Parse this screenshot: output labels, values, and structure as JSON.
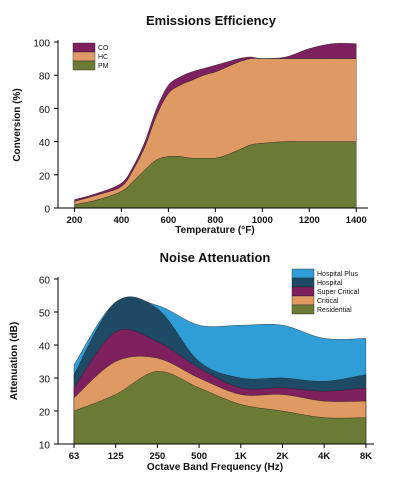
{
  "chart_data": [
    {
      "type": "area",
      "stacked": true,
      "title": "Emissions Efficiency",
      "xlabel": "Temperature (°F)",
      "ylabel": "Conversion (%)",
      "xlim": [
        130,
        1450
      ],
      "ylim": [
        0,
        100
      ],
      "x_ticks": [
        "200",
        "400",
        "600",
        "800",
        "1000",
        "1200",
        "1400"
      ],
      "y_ticks": [
        "0",
        "20",
        "40",
        "60",
        "80",
        "100"
      ],
      "legend_position": "top-left",
      "legend": [
        "CO",
        "HC",
        "PM"
      ],
      "series": [
        {
          "name": "PM",
          "color": "#6b7a34",
          "x": [
            200,
            300,
            400,
            450,
            500,
            550,
            600,
            650,
            700,
            750,
            800,
            850,
            900,
            950,
            1000,
            1100,
            1200,
            1300,
            1400
          ],
          "values": [
            2,
            5,
            10,
            16,
            23,
            29,
            31,
            31,
            30,
            30,
            30,
            32,
            35,
            38,
            39,
            40,
            40,
            40,
            40
          ]
        },
        {
          "name": "HC",
          "color": "#df9a63",
          "x": [
            200,
            300,
            400,
            450,
            500,
            550,
            600,
            650,
            700,
            750,
            800,
            850,
            900,
            950,
            1000,
            1100,
            1200,
            1300,
            1400
          ],
          "values": [
            2,
            3,
            3,
            7,
            14,
            27,
            38,
            43,
            47,
            50,
            52,
            53,
            53,
            52,
            51,
            50,
            50,
            50,
            50
          ]
        },
        {
          "name": "CO",
          "color": "#7e1f5e",
          "x": [
            200,
            300,
            400,
            450,
            500,
            550,
            600,
            650,
            700,
            750,
            800,
            850,
            900,
            950,
            1000,
            1100,
            1200,
            1300,
            1400
          ],
          "values": [
            1,
            1,
            2,
            2,
            3,
            4,
            5,
            5,
            5,
            4,
            4,
            3,
            2,
            1,
            0,
            1,
            6,
            9,
            9
          ]
        }
      ]
    },
    {
      "type": "area",
      "stacked": false,
      "title": "Noise Attenuation",
      "xlabel": "Octave Band Frequency (Hz)",
      "ylabel": "Attenuation (dB)",
      "ylim": [
        10,
        60
      ],
      "categories": [
        "63",
        "125",
        "250",
        "500",
        "1K",
        "2K",
        "4K",
        "8K"
      ],
      "y_ticks": [
        "10",
        "20",
        "30",
        "40",
        "50",
        "60"
      ],
      "legend_position": "top-right",
      "legend": [
        "Hospital Plus",
        "Hospital",
        "Super Critical",
        "Critical",
        "Residential"
      ],
      "series": [
        {
          "name": "Hospital Plus",
          "color": "#2f9ed6",
          "values": [
            34,
            53,
            52,
            46,
            46,
            46,
            42,
            42
          ]
        },
        {
          "name": "Hospital",
          "color": "#1e4a66",
          "values": [
            31,
            53,
            51,
            35,
            30,
            30,
            29,
            31
          ]
        },
        {
          "name": "Super Critical",
          "color": "#7e1f5e",
          "values": [
            27,
            44,
            41,
            33,
            27,
            27,
            26,
            27
          ]
        },
        {
          "name": "Critical",
          "color": "#df9a63",
          "values": [
            24,
            35,
            36,
            30,
            25,
            25,
            23,
            23
          ]
        },
        {
          "name": "Residential",
          "color": "#6b7a34",
          "values": [
            20,
            25,
            32,
            27,
            22,
            20,
            18,
            18
          ]
        }
      ]
    }
  ]
}
